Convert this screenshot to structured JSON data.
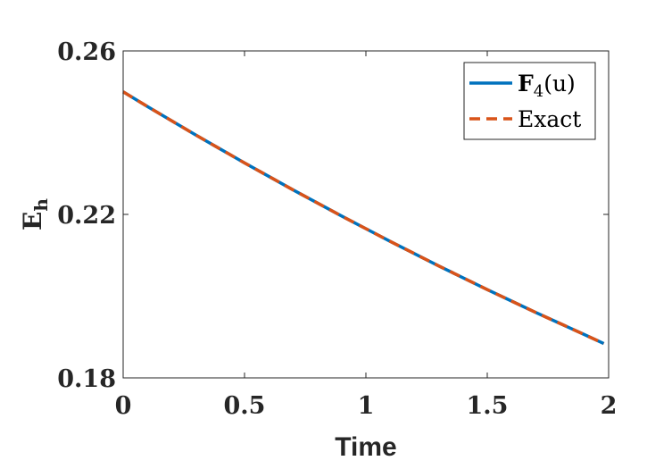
{
  "chart_data": {
    "type": "line",
    "title": "",
    "xlabel": "Time",
    "ylabel": "E",
    "ylabel_sub": "h",
    "xlim": [
      0,
      2
    ],
    "ylim": [
      0.18,
      0.26
    ],
    "xticks": [
      0,
      0.5,
      1,
      1.5,
      2
    ],
    "xtick_labels": [
      "0",
      "0.5",
      "1",
      "1.5",
      "2"
    ],
    "yticks": [
      0.18,
      0.22,
      0.26
    ],
    "ytick_labels": [
      "0.18",
      "0.22",
      "0.26"
    ],
    "grid": false,
    "legend": {
      "placement": "top-right",
      "entries": [
        {
          "name_main": "F",
          "name_sub": "4",
          "name_rest": "(u)"
        },
        {
          "name_main": "Exact"
        }
      ]
    },
    "series": [
      {
        "name": "F4(u)",
        "color": "#0072BD",
        "style": "solid",
        "x": [
          0,
          0.1,
          0.2,
          0.3,
          0.4,
          0.5,
          0.6,
          0.7,
          0.8,
          0.9,
          1.0,
          1.1,
          1.2,
          1.3,
          1.4,
          1.5,
          1.6,
          1.7,
          1.8,
          1.9,
          1.98
        ],
        "y": [
          0.25,
          0.2464,
          0.2429,
          0.2394,
          0.236,
          0.2326,
          0.2293,
          0.226,
          0.2228,
          0.2196,
          0.2165,
          0.2134,
          0.2104,
          0.2074,
          0.2045,
          0.2016,
          0.1988,
          0.196,
          0.1933,
          0.1906,
          0.1884
        ]
      },
      {
        "name": "Exact",
        "color": "#D95319",
        "style": "dashed",
        "x": [
          0,
          0.1,
          0.2,
          0.3,
          0.4,
          0.5,
          0.6,
          0.7,
          0.8,
          0.9,
          1.0,
          1.1,
          1.2,
          1.3,
          1.4,
          1.5,
          1.6,
          1.7,
          1.8,
          1.9,
          1.98
        ],
        "y": [
          0.25,
          0.2464,
          0.2429,
          0.2394,
          0.236,
          0.2326,
          0.2293,
          0.226,
          0.2228,
          0.2196,
          0.2165,
          0.2134,
          0.2104,
          0.2074,
          0.2045,
          0.2016,
          0.1988,
          0.196,
          0.1933,
          0.1906,
          0.1884
        ]
      }
    ]
  }
}
